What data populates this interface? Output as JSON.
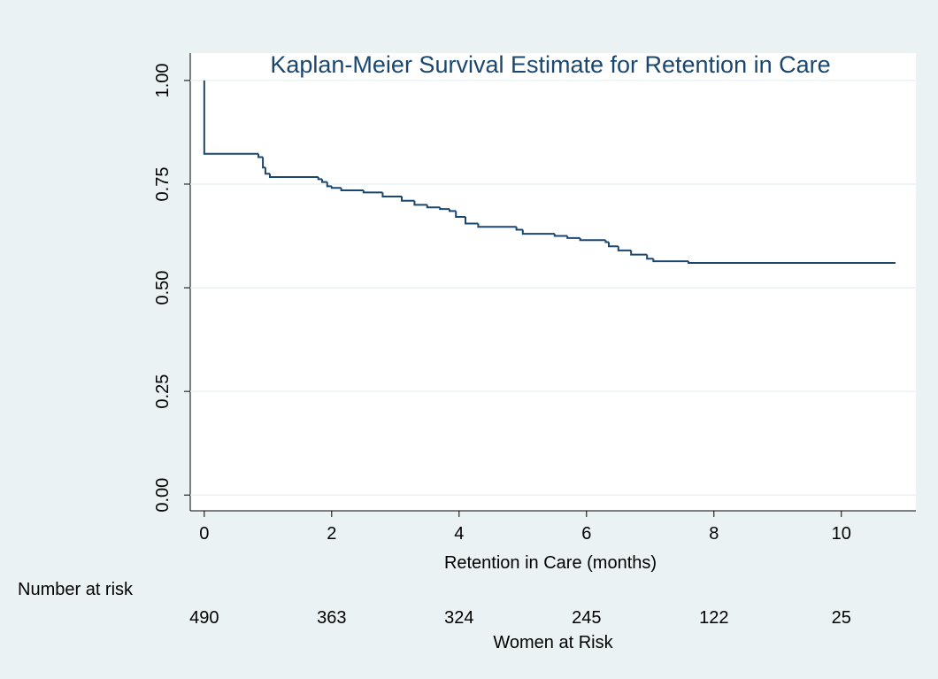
{
  "chart_data": {
    "type": "step",
    "title": "Kaplan-Meier Survival Estimate for Retention in Care",
    "x_label": "Retention in Care (months)",
    "color": "#1a476f",
    "grid": true,
    "xlim": [
      -0.22,
      11.17
    ],
    "ylim": [
      -0.038,
      1.066
    ],
    "xticks": [
      0,
      2,
      4,
      6,
      8,
      10
    ],
    "yticks": [
      {
        "value": 0,
        "label": "0.00"
      },
      {
        "value": 0.25,
        "label": "0.25"
      },
      {
        "value": 0.5,
        "label": "0.50"
      },
      {
        "value": 0.75,
        "label": "0.75"
      },
      {
        "value": 1,
        "label": "1.00"
      }
    ],
    "x": [
      0,
      0,
      0.85,
      0.92,
      0.96,
      1.03,
      1.79,
      1.85,
      1.93,
      2.0,
      2.15,
      2.5,
      2.8,
      3.1,
      3.3,
      3.5,
      3.7,
      3.85,
      3.95,
      4.1,
      4.3,
      4.9,
      5.0,
      5.5,
      5.7,
      5.9,
      6.3,
      6.35,
      6.5,
      6.7,
      6.95,
      7.05,
      7.6,
      10.85
    ],
    "values": [
      1.0,
      0.823,
      0.815,
      0.79,
      0.775,
      0.767,
      0.762,
      0.755,
      0.745,
      0.741,
      0.735,
      0.73,
      0.72,
      0.71,
      0.7,
      0.694,
      0.69,
      0.685,
      0.671,
      0.655,
      0.647,
      0.64,
      0.63,
      0.625,
      0.62,
      0.615,
      0.61,
      0.6,
      0.59,
      0.58,
      0.57,
      0.564,
      0.56,
      0.56
    ],
    "risk_table": {
      "title": "Number at risk",
      "label": "Women at Risk",
      "counts": [
        490,
        363,
        324,
        245,
        122,
        25
      ]
    }
  }
}
